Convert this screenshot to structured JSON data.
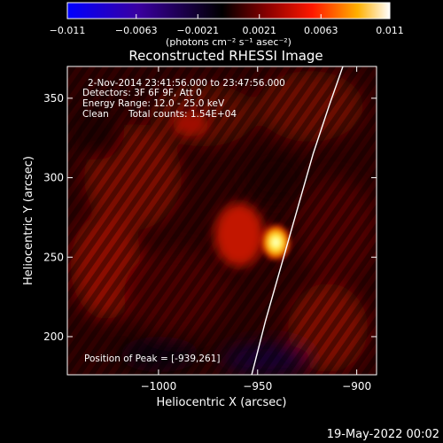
{
  "chart_data": {
    "type": "heatmap",
    "title": "Reconstructed RHESSI Image",
    "xlabel": "Heliocentric X (arcsec)",
    "ylabel": "Heliocentric Y (arcsec)",
    "xlim": [
      -1046,
      -890
    ],
    "ylim": [
      176,
      370
    ],
    "xticks": [
      -1000,
      -950,
      -900
    ],
    "xtick_labels": [
      "−1000",
      "−950",
      "−900"
    ],
    "yticks": [
      200,
      250,
      300,
      350
    ],
    "ytick_labels": [
      "200",
      "250",
      "300",
      "350"
    ],
    "colorbar": {
      "min": -0.011,
      "max": 0.011,
      "ticks": [
        -0.011,
        -0.0063,
        -0.0021,
        0.0021,
        0.0063,
        0.011
      ],
      "tick_labels": [
        "−0.011",
        "−0.0063",
        "−0.0021",
        "0.0021",
        "0.0063",
        "0.011"
      ],
      "label": "(photons cm⁻² s⁻¹ asec⁻²)",
      "colormap": "hot-rainbow",
      "colors": [
        "#0000ff",
        "#3a00a0",
        "#000000",
        "#8a0000",
        "#ff1800",
        "#ffb000",
        "#ffffff"
      ]
    },
    "annotations": [
      "2-Nov-2014 23:41:56.000 to 23:47:56.000",
      "Detectors: 3F 6F 9F, Att 0",
      "Energy Range: 12.0 - 25.0 keV",
      "Clean",
      "Total counts: 1.54E+04"
    ],
    "peak_label": "Position of Peak = [-939,261]",
    "peak": [
      -939,
      261
    ],
    "limb_curve": {
      "x": [
        -953,
        -946,
        -938,
        -930,
        -922,
        -914,
        -907
      ],
      "y": [
        176,
        210,
        245,
        280,
        315,
        345,
        370
      ],
      "color": "#ffffff"
    }
  },
  "footer": {
    "timestamp": "19-May-2022 00:02"
  }
}
